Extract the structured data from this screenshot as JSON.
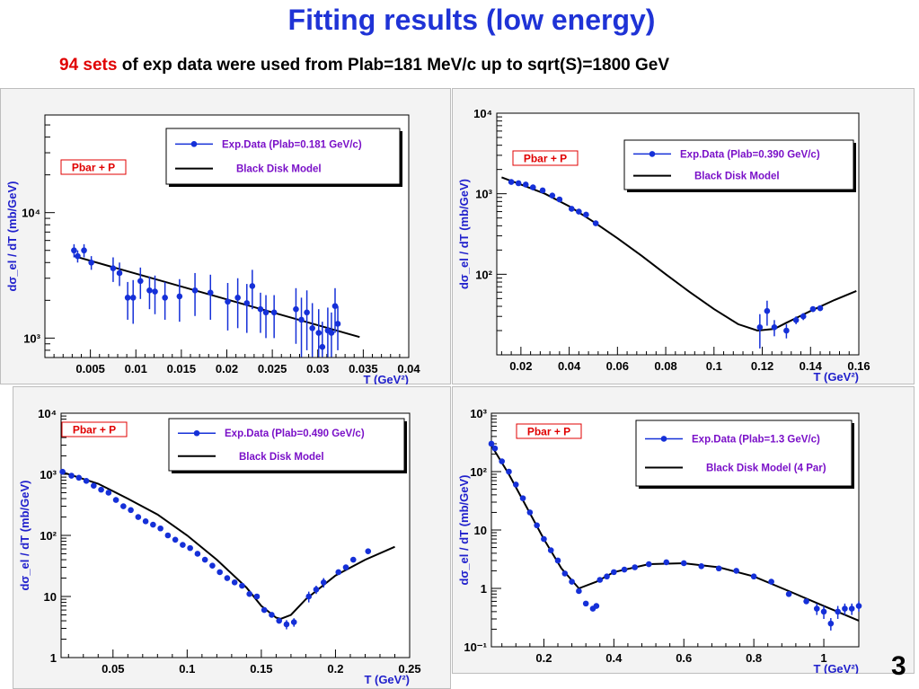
{
  "header": {
    "title": "Fitting results  (low energy)",
    "subtitle_highlight": "94 sets",
    "subtitle_rest": " of exp data were used from Plab=181 MeV/c up to sqrt(S)=1800 GeV"
  },
  "page_number": "3",
  "colors": {
    "data": "#1530d8",
    "model": "#000000",
    "accent": "#e00000",
    "title": "#1f33d6",
    "legend_text": "#7a10c8",
    "axis_title": "#2020cc"
  },
  "chart_data": [
    {
      "type": "scatter",
      "reaction_label": "Pbar + P",
      "legend": [
        "Exp.Data  (Plab=0.181 GeV/c)",
        "Black Disk Model"
      ],
      "xlabel": "T (GeV²)",
      "ylabel": "dσ_el / dT (mb/GeV)",
      "xlim": [
        0.0,
        0.04
      ],
      "ylim": [
        700,
        60000
      ],
      "yscale": "log",
      "x_ticks": [
        0.005,
        0.01,
        0.015,
        0.02,
        0.025,
        0.03,
        0.035,
        0.04
      ],
      "x_tick_labels": [
        "0.005",
        "0.01",
        "0.015",
        "0.02",
        "0.025",
        "0.03",
        "0.035",
        "0.04"
      ],
      "y_ticks": [
        1000,
        10000
      ],
      "y_tick_labels": [
        "10³",
        "10⁴"
      ],
      "series": [
        {
          "role": "data",
          "x": [
            0.0032,
            0.0036,
            0.0043,
            0.0051,
            0.0075,
            0.0082,
            0.0091,
            0.0097,
            0.0105,
            0.0115,
            0.0121,
            0.0132,
            0.0148,
            0.0165,
            0.0182,
            0.0201,
            0.0212,
            0.0222,
            0.0228,
            0.0237,
            0.0243,
            0.0252,
            0.0276,
            0.0282,
            0.0288,
            0.0294,
            0.0301,
            0.0305,
            0.0311,
            0.0315,
            0.0319,
            0.0322
          ],
          "y": [
            5000,
            4500,
            5000,
            4000,
            3600,
            3300,
            2100,
            2100,
            2850,
            2400,
            2350,
            2100,
            2150,
            2400,
            2300,
            1950,
            2100,
            1900,
            2600,
            1700,
            1600,
            1600,
            1700,
            1400,
            1600,
            1200,
            1100,
            850,
            1150,
            1100,
            1800,
            1300
          ],
          "err": [
            600,
            500,
            600,
            500,
            800,
            700,
            700,
            800,
            800,
            700,
            800,
            700,
            800,
            900,
            900,
            800,
            900,
            800,
            900,
            600,
            600,
            600,
            800,
            700,
            800,
            700,
            600,
            500,
            600,
            500,
            700,
            500
          ]
        },
        {
          "role": "model",
          "x": [
            0.0032,
            0.0346
          ],
          "y": [
            4500,
            1020
          ]
        }
      ]
    },
    {
      "type": "scatter",
      "reaction_label": "Pbar + P",
      "legend": [
        "Exp.Data  (Plab=0.390 GeV/c)",
        "Black Disk Model"
      ],
      "xlabel": "T (GeV²)",
      "ylabel": "dσ_el / dT (mb/GeV)",
      "xlim": [
        0.01,
        0.16
      ],
      "ylim": [
        10,
        10000
      ],
      "yscale": "log",
      "x_ticks": [
        0.02,
        0.04,
        0.06,
        0.08,
        0.1,
        0.12,
        0.14,
        0.16
      ],
      "x_tick_labels": [
        "0.02",
        "0.04",
        "0.06",
        "0.08",
        "0.1",
        "0.12",
        "0.14",
        "0.16"
      ],
      "y_ticks": [
        100,
        1000,
        10000
      ],
      "y_tick_labels": [
        "10²",
        "10³",
        "10⁴"
      ],
      "series": [
        {
          "role": "data",
          "x": [
            0.016,
            0.019,
            0.022,
            0.025,
            0.029,
            0.033,
            0.036,
            0.041,
            0.044,
            0.047,
            0.051,
            0.119,
            0.122,
            0.125,
            0.13,
            0.134,
            0.137,
            0.141,
            0.144
          ],
          "y": [
            1400,
            1350,
            1300,
            1200,
            1100,
            950,
            850,
            650,
            600,
            550,
            430,
            22,
            35,
            22,
            20,
            27,
            30,
            37,
            38
          ],
          "err": [
            0,
            0,
            0,
            0,
            0,
            0,
            0,
            0,
            0,
            0,
            0,
            10,
            12,
            5,
            4,
            3,
            3,
            3,
            3
          ]
        },
        {
          "role": "model",
          "x": [
            0.012,
            0.02,
            0.03,
            0.04,
            0.05,
            0.06,
            0.07,
            0.08,
            0.09,
            0.1,
            0.11,
            0.118,
            0.125,
            0.13,
            0.14,
            0.15,
            0.159
          ],
          "y": [
            1600,
            1300,
            1000,
            700,
            450,
            280,
            170,
            100,
            60,
            37,
            24,
            20,
            21,
            25,
            35,
            48,
            62
          ]
        }
      ]
    },
    {
      "type": "scatter",
      "reaction_label": "Pbar + P",
      "legend": [
        "Exp.Data  (Plab=0.490 GeV/c)",
        "Black Disk Model"
      ],
      "xlabel": "T (GeV²)",
      "ylabel": "dσ_el / dT (mb/GeV)",
      "xlim": [
        0.015,
        0.25
      ],
      "ylim": [
        1,
        10000
      ],
      "yscale": "log",
      "x_ticks": [
        0.05,
        0.1,
        0.15,
        0.2,
        0.25
      ],
      "x_tick_labels": [
        "0.05",
        "0.1",
        "0.15",
        "0.2",
        "0.25"
      ],
      "y_ticks": [
        1,
        10,
        100,
        1000,
        10000
      ],
      "y_tick_labels": [
        "1",
        "10",
        "10²",
        "10³",
        "10⁴"
      ],
      "series": [
        {
          "role": "data",
          "x": [
            0.016,
            0.022,
            0.027,
            0.032,
            0.037,
            0.042,
            0.047,
            0.052,
            0.057,
            0.062,
            0.067,
            0.072,
            0.077,
            0.082,
            0.087,
            0.092,
            0.097,
            0.102,
            0.107,
            0.112,
            0.117,
            0.122,
            0.127,
            0.132,
            0.137,
            0.142,
            0.147,
            0.152,
            0.157,
            0.162,
            0.167,
            0.172,
            0.182,
            0.187,
            0.192,
            0.202,
            0.207,
            0.212,
            0.222
          ],
          "y": [
            1100,
            950,
            880,
            780,
            650,
            560,
            500,
            380,
            300,
            260,
            200,
            170,
            150,
            130,
            100,
            85,
            70,
            62,
            50,
            40,
            32,
            25,
            20,
            17,
            15,
            11,
            10,
            6,
            5,
            4,
            3.5,
            3.8,
            10,
            13,
            17,
            25,
            30,
            40,
            55
          ],
          "err": [
            0,
            0,
            0,
            0,
            0,
            0,
            0,
            0,
            0,
            0,
            0,
            0,
            0,
            0,
            0,
            0,
            0,
            0,
            0,
            0,
            0,
            0,
            0,
            0,
            0,
            0,
            0,
            0,
            0,
            0,
            0.6,
            0.6,
            2,
            2,
            3,
            0,
            0,
            0,
            0
          ]
        },
        {
          "role": "model",
          "x": [
            0.015,
            0.04,
            0.06,
            0.08,
            0.1,
            0.12,
            0.14,
            0.15,
            0.16,
            0.163,
            0.17,
            0.18,
            0.2,
            0.22,
            0.24
          ],
          "y": [
            1100,
            700,
            400,
            220,
            100,
            40,
            14,
            7,
            4.5,
            4.3,
            5,
            9,
            22,
            40,
            65
          ]
        }
      ]
    },
    {
      "type": "scatter",
      "reaction_label": "Pbar + P",
      "legend": [
        "Exp.Data  (Plab=1.3 GeV/c)",
        "Black Disk Model (4 Par)"
      ],
      "xlabel": "T (GeV²)",
      "ylabel": "dσ_el / dT (mb/GeV)",
      "xlim": [
        0.05,
        1.1
      ],
      "ylim": [
        0.1,
        1000
      ],
      "yscale": "log",
      "x_ticks": [
        0.2,
        0.4,
        0.6,
        0.8,
        1
      ],
      "x_tick_labels": [
        "0.2",
        "0.4",
        "0.6",
        "0.8",
        "1"
      ],
      "y_ticks": [
        0.1,
        1,
        10,
        100,
        1000
      ],
      "y_tick_labels": [
        "10⁻¹",
        "1",
        "10",
        "10²",
        "10³"
      ],
      "series": [
        {
          "role": "data",
          "x": [
            0.05,
            0.06,
            0.08,
            0.1,
            0.12,
            0.14,
            0.16,
            0.18,
            0.2,
            0.22,
            0.24,
            0.26,
            0.28,
            0.3,
            0.32,
            0.34,
            0.35,
            0.36,
            0.38,
            0.4,
            0.43,
            0.46,
            0.5,
            0.55,
            0.6,
            0.65,
            0.7,
            0.75,
            0.8,
            0.85,
            0.9,
            0.95,
            0.98,
            1.0,
            1.02,
            1.04,
            1.06,
            1.08,
            1.1
          ],
          "y": [
            300,
            250,
            150,
            100,
            60,
            35,
            20,
            12,
            7,
            4.5,
            3,
            1.8,
            1.3,
            0.9,
            0.55,
            0.45,
            0.5,
            1.4,
            1.6,
            1.9,
            2.1,
            2.3,
            2.6,
            2.8,
            2.7,
            2.4,
            2.2,
            2.0,
            1.6,
            1.3,
            0.8,
            0.6,
            0.45,
            0.4,
            0.25,
            0.4,
            0.45,
            0.45,
            0.5
          ],
          "err": [
            0,
            0,
            0,
            0,
            0,
            0,
            0,
            0,
            0,
            0,
            0,
            0,
            0,
            0,
            0,
            0,
            0,
            0,
            0,
            0,
            0,
            0,
            0,
            0,
            0,
            0,
            0,
            0,
            0,
            0,
            0,
            0,
            0.1,
            0.1,
            0.06,
            0.1,
            0.1,
            0.1,
            0.1
          ]
        },
        {
          "role": "model",
          "x": [
            0.05,
            0.1,
            0.15,
            0.2,
            0.25,
            0.3,
            0.35,
            0.4,
            0.5,
            0.6,
            0.7,
            0.8,
            0.9,
            1.0,
            1.1
          ],
          "y": [
            280,
            90,
            25,
            7,
            2.2,
            1.0,
            1.3,
            1.9,
            2.6,
            2.7,
            2.3,
            1.6,
            0.9,
            0.5,
            0.28
          ]
        }
      ]
    }
  ]
}
